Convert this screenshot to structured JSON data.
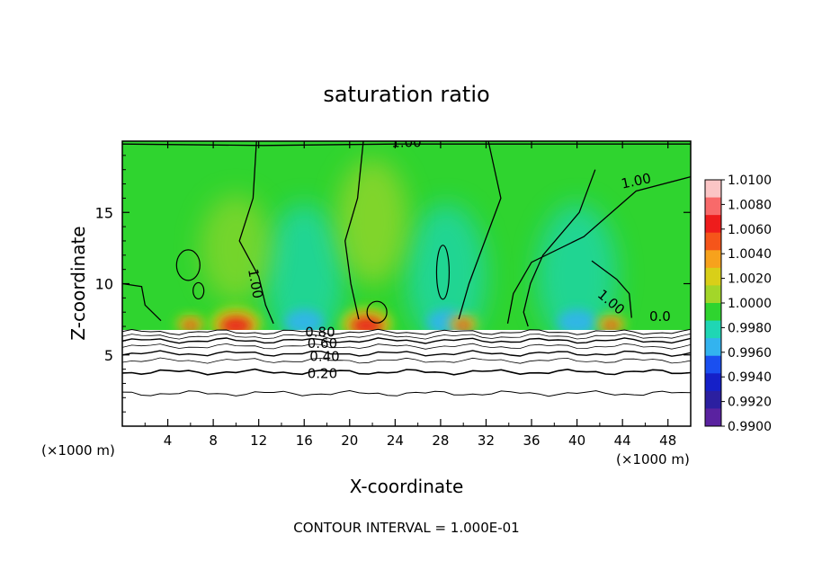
{
  "chart_data": {
    "type": "heatmap",
    "title": "saturation ratio",
    "xlabel": "X-coordinate",
    "ylabel": "Z-coordinate",
    "x_unit_left": "(×1000 m)",
    "x_unit_right": "(×1000 m)",
    "xlim": [
      0,
      50
    ],
    "ylim": [
      0,
      20
    ],
    "x_ticks": [
      "4",
      "8",
      "12",
      "16",
      "20",
      "24",
      "28",
      "32",
      "36",
      "40",
      "44",
      "48"
    ],
    "y_ticks": [
      "5",
      "10",
      "15"
    ],
    "footer": "CONTOUR INTERVAL = 1.000E-01",
    "colorbar": {
      "labels": [
        "1.0100",
        "1.0080",
        "1.0060",
        "1.0040",
        "1.0020",
        "1.0000",
        "0.9980",
        "0.9960",
        "0.9940",
        "0.9920",
        "0.9900"
      ],
      "colors": [
        "#fbc5c5",
        "#f86a6a",
        "#ee1c1c",
        "#f5551a",
        "#f7a21c",
        "#d9cf18",
        "#a3d629",
        "#2fd42f",
        "#1fd6b4",
        "#33b3ef",
        "#1a4ff0",
        "#1520c8",
        "#2b1fa0",
        "#5a22a0"
      ]
    },
    "contour_labels": [
      "1.00",
      "1.00",
      "1.00",
      "1.00",
      "0.0",
      "0.80",
      "0.60",
      "0.40",
      "0.20"
    ],
    "hotspots_x": [
      10,
      21.5,
      6,
      30,
      43
    ],
    "coldspots_x": [
      16,
      28.5,
      40
    ],
    "inversion_z": 6.8
  }
}
